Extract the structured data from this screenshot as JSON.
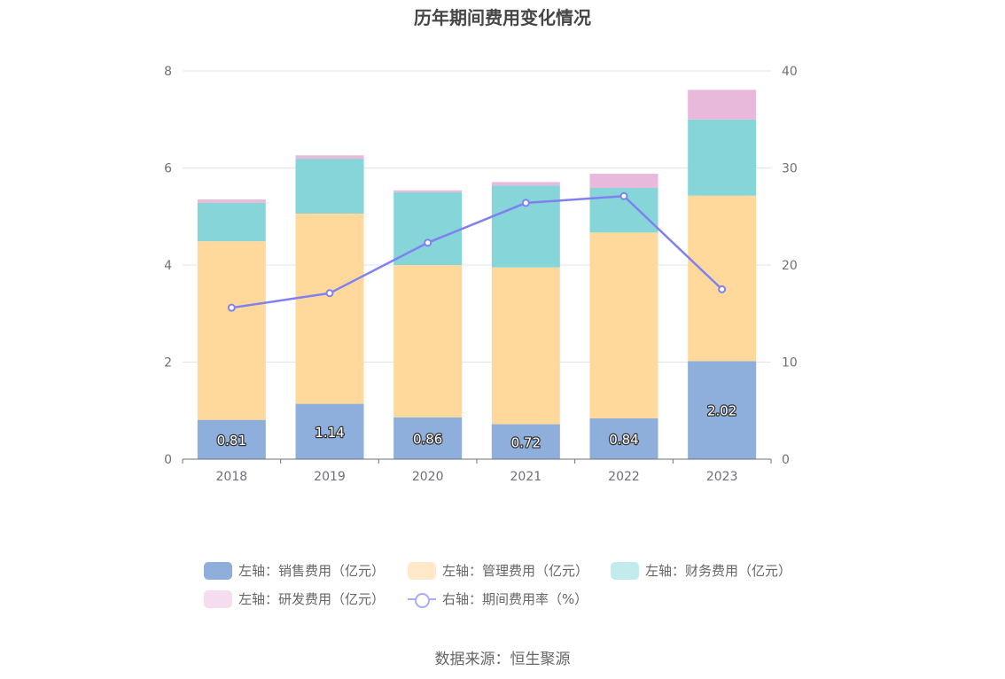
{
  "title": "历年期间费用变化情况",
  "source": "数据来源：恒生聚源",
  "colors": {
    "sales": "#8eaedb",
    "admin": "#ffd99c",
    "finance": "#86d5d9",
    "rnd": "#e8b9da",
    "rate": "#8080f0"
  },
  "legend": [
    {
      "label": "左轴：销售费用（亿元）",
      "color": "#8eaedb",
      "kind": "bar"
    },
    {
      "label": "左轴：管理费用（亿元）",
      "color": "#ffe9c8",
      "kind": "bar"
    },
    {
      "label": "左轴：财务费用（亿元）",
      "color": "#c2ebed",
      "kind": "bar"
    },
    {
      "label": "左轴：研发费用（亿元）",
      "color": "#f5dcee",
      "kind": "bar"
    },
    {
      "label": "右轴：期间费用率（%）",
      "color": "#aaaaff",
      "kind": "line"
    }
  ],
  "chart_data": {
    "type": "bar",
    "stacked": true,
    "title": "历年期间费用变化情况",
    "categories": [
      "2018",
      "2019",
      "2020",
      "2021",
      "2022",
      "2023"
    ],
    "series": [
      {
        "name": "左轴：销售费用（亿元）",
        "axis": "left",
        "values": [
          0.81,
          1.14,
          0.86,
          0.72,
          0.84,
          2.02
        ],
        "labeled": true
      },
      {
        "name": "左轴：管理费用（亿元）",
        "axis": "left",
        "values": [
          3.68,
          3.92,
          3.14,
          3.23,
          3.83,
          3.41
        ]
      },
      {
        "name": "左轴：财务费用（亿元）",
        "axis": "left",
        "values": [
          0.79,
          1.13,
          1.5,
          1.69,
          0.92,
          1.57
        ]
      },
      {
        "name": "左轴：研发费用（亿元）",
        "axis": "left",
        "values": [
          0.07,
          0.07,
          0.04,
          0.07,
          0.29,
          0.61
        ]
      },
      {
        "name": "右轴：期间费用率（%）",
        "axis": "right",
        "type": "line",
        "values": [
          15.6,
          17.1,
          22.3,
          26.4,
          27.1,
          17.5
        ]
      }
    ],
    "left_axis": {
      "min": 0,
      "max": 8,
      "ticks": [
        0,
        2,
        4,
        6,
        8
      ]
    },
    "right_axis": {
      "min": 0,
      "max": 40,
      "ticks": [
        0,
        10,
        20,
        30,
        40
      ]
    },
    "grid": true,
    "legend_position": "bottom"
  }
}
